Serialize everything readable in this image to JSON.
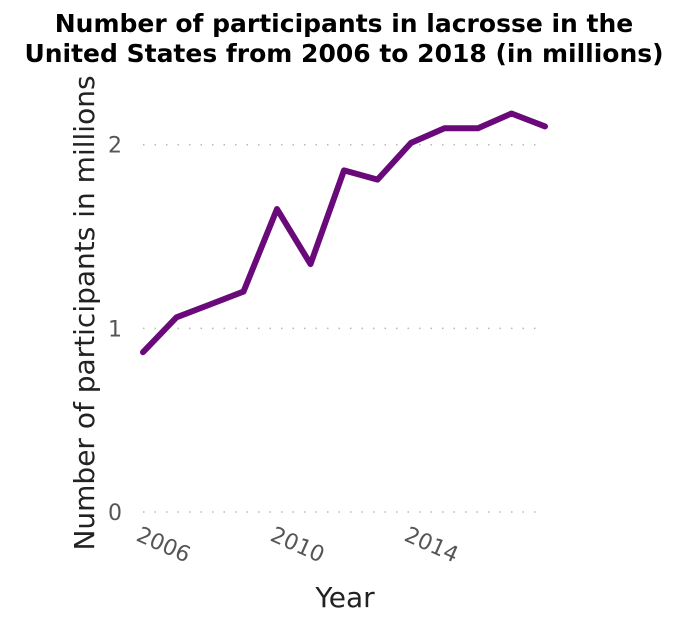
{
  "chart_data": {
    "type": "line",
    "title": "Number of participants in lacrosse in the United States from 2006 to 2018 (in millions)",
    "title_lines": [
      "Number of participants in lacrosse in the",
      "United States from 2006 to 2018 (in millions)"
    ],
    "xlabel": "Year",
    "ylabel": "Number of participants in millions",
    "x": [
      2006,
      2007,
      2008,
      2009,
      2010,
      2011,
      2012,
      2013,
      2014,
      2015,
      2016,
      2017,
      2018
    ],
    "values": [
      0.87,
      1.06,
      1.13,
      1.2,
      1.65,
      1.35,
      1.86,
      1.81,
      2.01,
      2.09,
      2.09,
      2.17,
      2.1
    ],
    "xlim": [
      2006,
      2018
    ],
    "ylim": [
      0,
      2.2
    ],
    "x_ticks": [
      2006,
      2010,
      2014
    ],
    "y_ticks": [
      0,
      1,
      2
    ],
    "grid": "horizontal dotted",
    "line_color": "#6a0a7a"
  }
}
